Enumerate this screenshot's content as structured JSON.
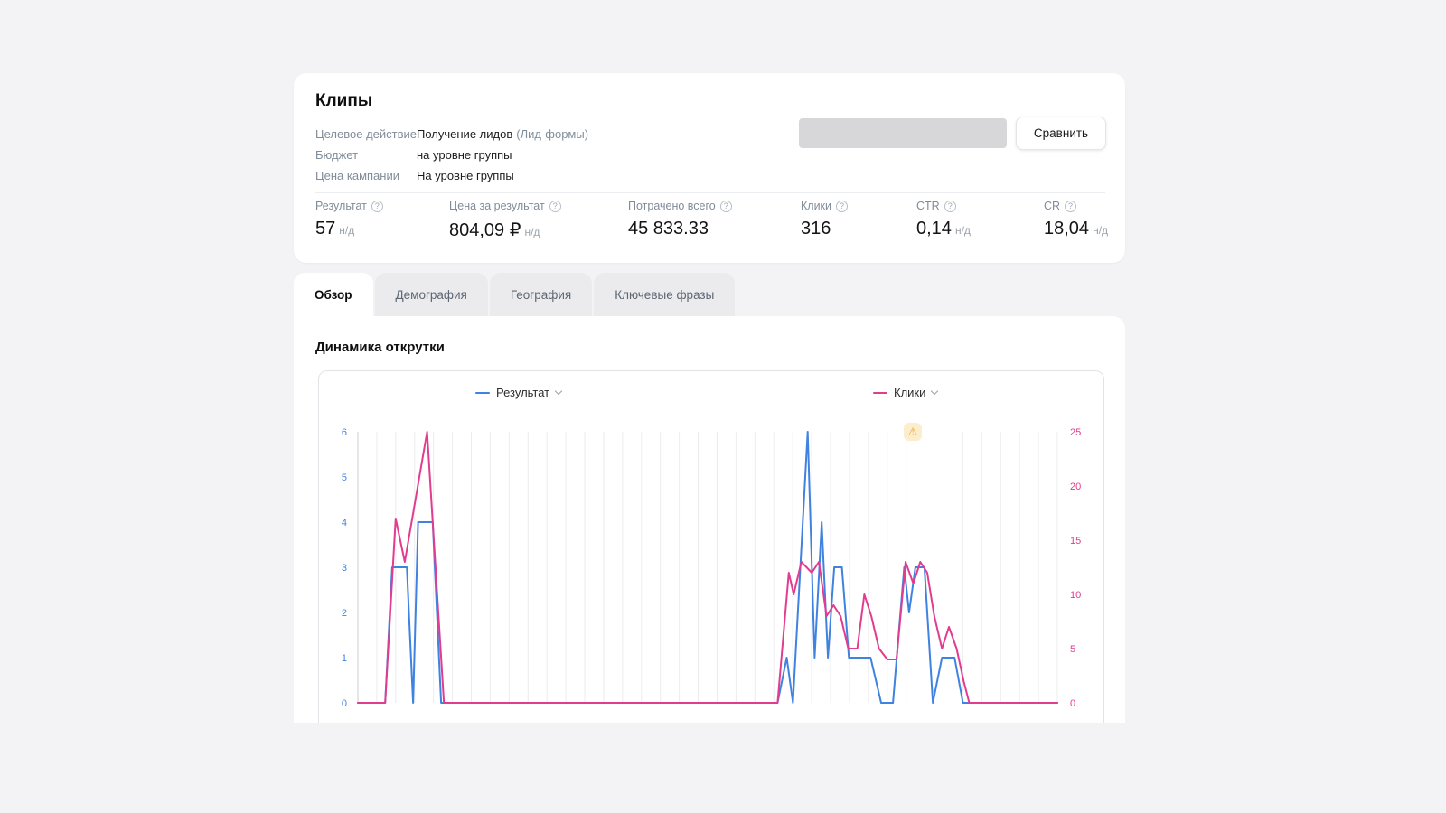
{
  "header": {
    "title": "Клипы",
    "fields": [
      {
        "label": "Целевое действие",
        "value": "Получение лидов",
        "value_extra": "(Лид-формы)"
      },
      {
        "label": "Бюджет",
        "value": "на уровне группы",
        "value_extra": ""
      },
      {
        "label": "Цена кампании",
        "value": "На уровне группы",
        "value_extra": ""
      }
    ],
    "compare_button": "Сравнить"
  },
  "stats": [
    {
      "label": "Результат",
      "value": "57",
      "suffix": "н/д"
    },
    {
      "label": "Цена за результат",
      "value": "804,09 ₽",
      "suffix": "н/д"
    },
    {
      "label": "Потрачено всего",
      "value": "45 833.33",
      "suffix": ""
    },
    {
      "label": "Клики",
      "value": "316",
      "suffix": ""
    },
    {
      "label": "CTR",
      "value": "0,14",
      "suffix": "н/д"
    },
    {
      "label": "CR",
      "value": "18,04",
      "suffix": "н/д"
    }
  ],
  "tabs": [
    {
      "label": "Обзор"
    },
    {
      "label": "Демография"
    },
    {
      "label": "География"
    },
    {
      "label": "Ключевые фразы"
    }
  ],
  "section_title": "Динамика открутки",
  "icons": {
    "help": "?",
    "warning": "⚠"
  },
  "chart_data": {
    "type": "line",
    "title": "Динамика открутки",
    "legend": [
      {
        "name": "Результат",
        "color": "#3f82e0"
      },
      {
        "name": "Клики",
        "color": "#e23c8e"
      }
    ],
    "left_axis": {
      "label": "Результат",
      "ticks": [
        0,
        1,
        2,
        3,
        4,
        5,
        6
      ],
      "max": 6,
      "color": "#3f82e0"
    },
    "right_axis": {
      "label": "Клики",
      "ticks": [
        0,
        5,
        10,
        15,
        20,
        25
      ],
      "max": 25,
      "color": "#e23c8e"
    },
    "gridline_count": 38,
    "grid_color": "#ececef",
    "axis_line_color": "#c9ccd1",
    "series": [
      {
        "name": "Результат",
        "axis": "left",
        "color": "#3f82e0",
        "points": [
          [
            0,
            0
          ],
          [
            0.039,
            0
          ],
          [
            0.049,
            3
          ],
          [
            0.07,
            3
          ],
          [
            0.079,
            0
          ],
          [
            0.086,
            4
          ],
          [
            0.107,
            4
          ],
          [
            0.119,
            0
          ],
          [
            0.6,
            0
          ],
          [
            0.613,
            1
          ],
          [
            0.622,
            0
          ],
          [
            0.643,
            6
          ],
          [
            0.653,
            1
          ],
          [
            0.663,
            4
          ],
          [
            0.672,
            1
          ],
          [
            0.681,
            3
          ],
          [
            0.692,
            3
          ],
          [
            0.702,
            1
          ],
          [
            0.724,
            1
          ],
          [
            0.733,
            1
          ],
          [
            0.748,
            0
          ],
          [
            0.765,
            0
          ],
          [
            0.781,
            3
          ],
          [
            0.788,
            2
          ],
          [
            0.797,
            3
          ],
          [
            0.81,
            3
          ],
          [
            0.822,
            0
          ],
          [
            0.835,
            1
          ],
          [
            0.853,
            1
          ],
          [
            0.865,
            0
          ],
          [
            1,
            0
          ]
        ]
      },
      {
        "name": "Клики",
        "axis": "right",
        "color": "#e23c8e",
        "points": [
          [
            0,
            0
          ],
          [
            0.039,
            0
          ],
          [
            0.054,
            17
          ],
          [
            0.067,
            13
          ],
          [
            0.099,
            25
          ],
          [
            0.123,
            0
          ],
          [
            0.6,
            0
          ],
          [
            0.616,
            12
          ],
          [
            0.623,
            10
          ],
          [
            0.634,
            13
          ],
          [
            0.649,
            12
          ],
          [
            0.659,
            13
          ],
          [
            0.67,
            8
          ],
          [
            0.68,
            9
          ],
          [
            0.69,
            8
          ],
          [
            0.701,
            5
          ],
          [
            0.714,
            5
          ],
          [
            0.724,
            10
          ],
          [
            0.734,
            8
          ],
          [
            0.745,
            5
          ],
          [
            0.757,
            4
          ],
          [
            0.77,
            4
          ],
          [
            0.783,
            13
          ],
          [
            0.794,
            11
          ],
          [
            0.804,
            13
          ],
          [
            0.814,
            12
          ],
          [
            0.824,
            8
          ],
          [
            0.835,
            5
          ],
          [
            0.845,
            7
          ],
          [
            0.856,
            5
          ],
          [
            0.866,
            2
          ],
          [
            0.874,
            0
          ],
          [
            1,
            0
          ]
        ]
      }
    ]
  }
}
